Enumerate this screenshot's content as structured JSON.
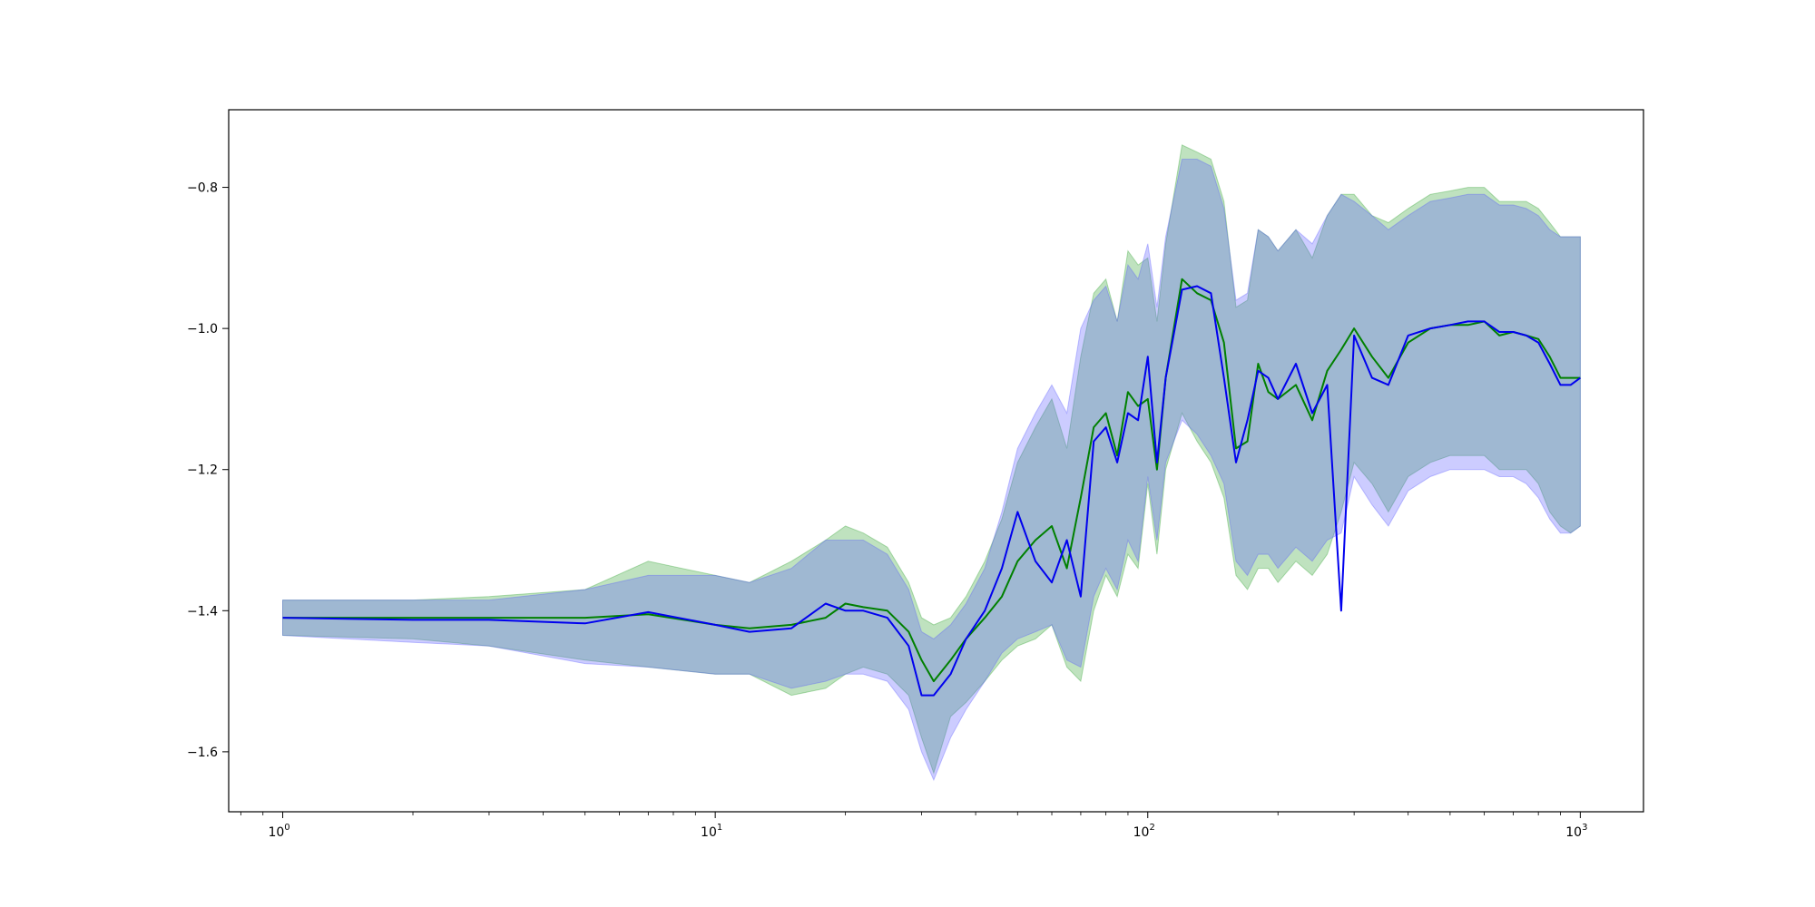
{
  "chart_data": {
    "type": "line",
    "title": "",
    "xlabel": "",
    "ylabel": "",
    "xscale": "log",
    "xlim": [
      0.75,
      1400
    ],
    "ylim": [
      -1.685,
      -0.69
    ],
    "grid": false,
    "x_ticks": [
      {
        "base": "10",
        "exp": "0",
        "value": 1
      },
      {
        "base": "10",
        "exp": "1",
        "value": 10
      },
      {
        "base": "10",
        "exp": "2",
        "value": 100
      },
      {
        "base": "10",
        "exp": "3",
        "value": 1000
      }
    ],
    "y_ticks": [
      {
        "label": "−1.6",
        "value": -1.6
      },
      {
        "label": "−1.4",
        "value": -1.4
      },
      {
        "label": "−1.2",
        "value": -1.2
      },
      {
        "label": "−1.0",
        "value": -1.0
      },
      {
        "label": "−0.8",
        "value": -0.8
      }
    ],
    "series": [
      {
        "color": "#008000",
        "band_color": "#2ca02c",
        "x": [
          1,
          2,
          3,
          5,
          7,
          10,
          12,
          15,
          18,
          20,
          22,
          25,
          28,
          30,
          32,
          35,
          38,
          42,
          46,
          50,
          55,
          60,
          65,
          70,
          75,
          80,
          85,
          90,
          95,
          100,
          105,
          110,
          120,
          130,
          140,
          150,
          160,
          170,
          180,
          190,
          200,
          220,
          240,
          260,
          280,
          300,
          330,
          360,
          400,
          450,
          500,
          550,
          600,
          650,
          700,
          750,
          800,
          850,
          900,
          950,
          1000
        ],
        "y": [
          -1.41,
          -1.41,
          -1.41,
          -1.41,
          -1.405,
          -1.42,
          -1.425,
          -1.42,
          -1.41,
          -1.39,
          -1.395,
          -1.4,
          -1.43,
          -1.47,
          -1.5,
          -1.47,
          -1.44,
          -1.41,
          -1.38,
          -1.33,
          -1.3,
          -1.28,
          -1.34,
          -1.24,
          -1.14,
          -1.12,
          -1.18,
          -1.09,
          -1.11,
          -1.1,
          -1.2,
          -1.07,
          -0.93,
          -0.95,
          -0.96,
          -1.02,
          -1.17,
          -1.16,
          -1.05,
          -1.09,
          -1.1,
          -1.08,
          -1.13,
          -1.06,
          -1.03,
          -1.0,
          -1.04,
          -1.07,
          -1.02,
          -1.0,
          -0.995,
          -0.995,
          -0.99,
          -1.01,
          -1.005,
          -1.01,
          -1.015,
          -1.04,
          -1.07,
          -1.07,
          -1.07
        ],
        "lower": [
          -1.435,
          -1.44,
          -1.45,
          -1.47,
          -1.48,
          -1.49,
          -1.49,
          -1.52,
          -1.51,
          -1.49,
          -1.48,
          -1.49,
          -1.52,
          -1.58,
          -1.63,
          -1.55,
          -1.53,
          -1.5,
          -1.47,
          -1.45,
          -1.44,
          -1.42,
          -1.48,
          -1.5,
          -1.4,
          -1.35,
          -1.38,
          -1.32,
          -1.34,
          -1.22,
          -1.32,
          -1.2,
          -1.12,
          -1.16,
          -1.19,
          -1.24,
          -1.35,
          -1.37,
          -1.34,
          -1.34,
          -1.36,
          -1.33,
          -1.35,
          -1.32,
          -1.26,
          -1.19,
          -1.22,
          -1.26,
          -1.21,
          -1.19,
          -1.18,
          -1.18,
          -1.18,
          -1.2,
          -1.2,
          -1.2,
          -1.22,
          -1.26,
          -1.28,
          -1.29,
          -1.28
        ],
        "upper": [
          -1.385,
          -1.385,
          -1.38,
          -1.37,
          -1.33,
          -1.35,
          -1.36,
          -1.33,
          -1.3,
          -1.28,
          -1.29,
          -1.31,
          -1.36,
          -1.41,
          -1.42,
          -1.41,
          -1.38,
          -1.33,
          -1.27,
          -1.19,
          -1.14,
          -1.1,
          -1.17,
          -1.04,
          -0.95,
          -0.93,
          -0.99,
          -0.89,
          -0.91,
          -0.9,
          -0.99,
          -0.88,
          -0.74,
          -0.75,
          -0.76,
          -0.82,
          -0.97,
          -0.96,
          -0.86,
          -0.87,
          -0.89,
          -0.86,
          -0.9,
          -0.84,
          -0.81,
          -0.81,
          -0.84,
          -0.85,
          -0.83,
          -0.81,
          -0.805,
          -0.8,
          -0.8,
          -0.82,
          -0.82,
          -0.82,
          -0.83,
          -0.85,
          -0.87,
          -0.87,
          -0.87
        ]
      },
      {
        "color": "#0000ee",
        "band_color": "#5555ff",
        "x": [
          1,
          2,
          3,
          5,
          7,
          10,
          12,
          15,
          18,
          20,
          22,
          25,
          28,
          30,
          32,
          35,
          38,
          42,
          46,
          50,
          55,
          60,
          65,
          70,
          75,
          80,
          85,
          90,
          95,
          100,
          105,
          110,
          120,
          130,
          140,
          150,
          160,
          170,
          180,
          190,
          200,
          220,
          240,
          260,
          280,
          300,
          330,
          360,
          400,
          450,
          500,
          550,
          600,
          650,
          700,
          750,
          800,
          850,
          900,
          950,
          1000
        ],
        "y": [
          -1.41,
          -1.413,
          -1.413,
          -1.418,
          -1.402,
          -1.42,
          -1.43,
          -1.425,
          -1.39,
          -1.4,
          -1.4,
          -1.41,
          -1.45,
          -1.52,
          -1.52,
          -1.49,
          -1.44,
          -1.4,
          -1.34,
          -1.26,
          -1.33,
          -1.36,
          -1.3,
          -1.38,
          -1.16,
          -1.14,
          -1.19,
          -1.12,
          -1.13,
          -1.04,
          -1.19,
          -1.07,
          -0.945,
          -0.94,
          -0.95,
          -1.07,
          -1.19,
          -1.13,
          -1.06,
          -1.07,
          -1.1,
          -1.05,
          -1.12,
          -1.08,
          -1.4,
          -1.01,
          -1.07,
          -1.08,
          -1.01,
          -1.0,
          -0.995,
          -0.99,
          -0.99,
          -1.005,
          -1.005,
          -1.01,
          -1.02,
          -1.05,
          -1.08,
          -1.08,
          -1.07
        ],
        "lower": [
          -1.435,
          -1.445,
          -1.45,
          -1.475,
          -1.48,
          -1.49,
          -1.49,
          -1.51,
          -1.5,
          -1.49,
          -1.49,
          -1.5,
          -1.54,
          -1.6,
          -1.64,
          -1.58,
          -1.54,
          -1.5,
          -1.46,
          -1.44,
          -1.43,
          -1.42,
          -1.47,
          -1.48,
          -1.38,
          -1.34,
          -1.37,
          -1.3,
          -1.33,
          -1.21,
          -1.3,
          -1.19,
          -1.13,
          -1.15,
          -1.18,
          -1.22,
          -1.33,
          -1.35,
          -1.32,
          -1.32,
          -1.34,
          -1.31,
          -1.33,
          -1.3,
          -1.29,
          -1.21,
          -1.25,
          -1.28,
          -1.23,
          -1.21,
          -1.2,
          -1.2,
          -1.2,
          -1.21,
          -1.21,
          -1.22,
          -1.24,
          -1.27,
          -1.29,
          -1.29,
          -1.28
        ],
        "upper": [
          -1.385,
          -1.385,
          -1.385,
          -1.37,
          -1.35,
          -1.35,
          -1.36,
          -1.34,
          -1.3,
          -1.3,
          -1.3,
          -1.32,
          -1.37,
          -1.43,
          -1.44,
          -1.42,
          -1.39,
          -1.34,
          -1.26,
          -1.17,
          -1.12,
          -1.08,
          -1.12,
          -1.0,
          -0.96,
          -0.94,
          -0.99,
          -0.91,
          -0.93,
          -0.88,
          -0.97,
          -0.87,
          -0.76,
          -0.76,
          -0.77,
          -0.83,
          -0.96,
          -0.95,
          -0.86,
          -0.87,
          -0.89,
          -0.86,
          -0.88,
          -0.84,
          -0.81,
          -0.82,
          -0.84,
          -0.86,
          -0.84,
          -0.82,
          -0.815,
          -0.81,
          -0.81,
          -0.825,
          -0.825,
          -0.83,
          -0.84,
          -0.86,
          -0.87,
          -0.87,
          -0.87
        ]
      }
    ]
  }
}
